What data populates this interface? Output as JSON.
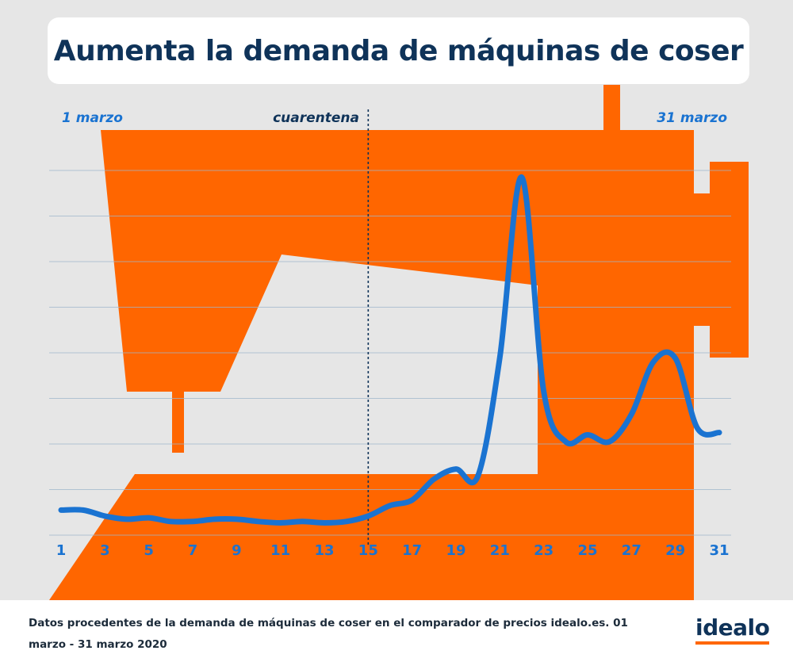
{
  "title": "Aumenta la demanda de máquinas de coser",
  "annotations": {
    "start": "1 marzo",
    "quarantine": "cuarentena",
    "end": "31 marzo"
  },
  "footer": "Datos procedentes de la demanda de máquinas de coser en el comparador de precios idealo.es. 01 marzo - 31 marzo 2020",
  "logo": "idealo",
  "colors": {
    "line": "#1a73d1",
    "machine": "#ff6600",
    "title": "#0f3359",
    "background": "#e6e6e6",
    "quarantine_line": "#0f3359"
  },
  "chart_data": {
    "type": "line",
    "title": "Aumenta la demanda de máquinas de coser",
    "xlabel": "",
    "ylabel": "",
    "xlim": [
      1,
      31
    ],
    "ylim": [
      0,
      8
    ],
    "grid": "horizontal",
    "x": [
      1,
      2,
      3,
      4,
      5,
      6,
      7,
      8,
      9,
      10,
      11,
      12,
      13,
      14,
      15,
      16,
      17,
      18,
      19,
      20,
      21,
      22,
      23,
      24,
      25,
      26,
      27,
      28,
      29,
      30,
      31
    ],
    "tick_labels": [
      "1",
      "3",
      "5",
      "7",
      "9",
      "11",
      "13",
      "15",
      "17",
      "19",
      "21",
      "23",
      "25",
      "27",
      "29",
      "31"
    ],
    "series": [
      {
        "values": [
          0.55,
          0.55,
          0.42,
          0.35,
          0.38,
          0.3,
          0.3,
          0.35,
          0.35,
          0.3,
          0.27,
          0.3,
          0.27,
          0.3,
          0.42,
          0.65,
          0.77,
          1.23,
          1.45,
          1.3,
          3.9,
          7.85,
          3.15,
          2.05,
          2.2,
          2.05,
          2.65,
          3.8,
          3.88,
          2.35,
          2.25
        ]
      }
    ],
    "annotations": [
      {
        "x": 1,
        "text": "1 marzo"
      },
      {
        "x": 15,
        "text": "cuarentena"
      },
      {
        "x": 31,
        "text": "31 marzo"
      }
    ]
  }
}
